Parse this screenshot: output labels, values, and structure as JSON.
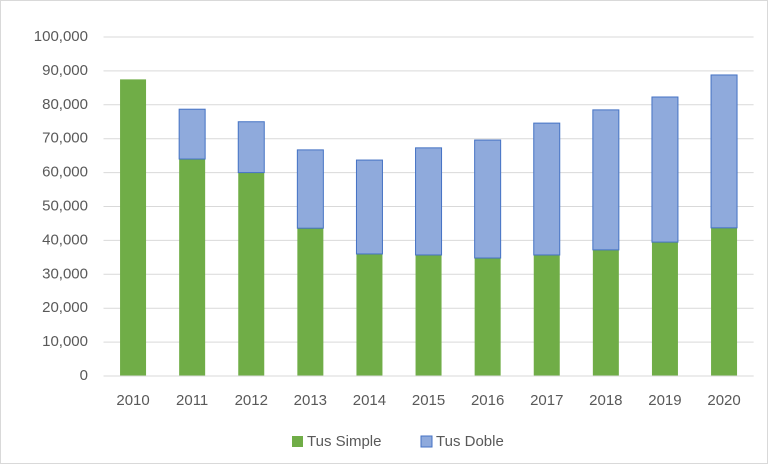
{
  "chart_data": {
    "type": "stacked_bar",
    "categories": [
      "2010",
      "2011",
      "2012",
      "2013",
      "2014",
      "2015",
      "2016",
      "2017",
      "2018",
      "2019",
      "2020"
    ],
    "series": [
      {
        "name": "Tus Simple",
        "color": "#70ad47",
        "values": [
          87500,
          64000,
          60000,
          43600,
          36000,
          35700,
          34800,
          35700,
          37200,
          39500,
          43700
        ]
      },
      {
        "name": "Tus Doble",
        "color": "#8faadc",
        "values": [
          0,
          14700,
          15000,
          23100,
          27700,
          31600,
          34800,
          38900,
          41300,
          42800,
          45100
        ]
      }
    ],
    "ylim": [
      0,
      100000
    ],
    "yticks": [
      0,
      {
        "value": 10000,
        "label": "10,000"
      },
      {
        "value": 20000,
        "label": "20,000"
      },
      {
        "value": 30000,
        "label": "30,000"
      },
      {
        "value": 40000,
        "label": "40,000"
      },
      {
        "value": 50000,
        "label": "50,000"
      },
      {
        "value": 60000,
        "label": "60,000"
      },
      {
        "value": 70000,
        "label": "70,000"
      },
      {
        "value": 80000,
        "label": "80,000"
      },
      {
        "value": 90000,
        "label": "90,000"
      },
      {
        "value": 100000,
        "label": "100,000"
      }
    ],
    "grid": true,
    "legend": "bottom"
  }
}
